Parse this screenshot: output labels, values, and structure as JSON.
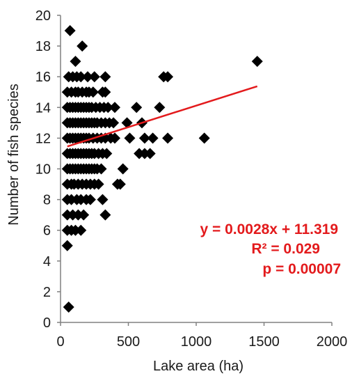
{
  "chart_data": {
    "type": "scatter",
    "title": "",
    "xlabel": "Lake area (ha)",
    "ylabel": "Number of fish species",
    "xlim": [
      0,
      2000
    ],
    "ylim": [
      0,
      20
    ],
    "xticks": [
      0,
      500,
      1000,
      1500,
      2000
    ],
    "yticks": [
      0,
      2,
      4,
      6,
      8,
      10,
      12,
      14,
      16,
      18,
      20
    ],
    "grid": false,
    "marker": "diamond",
    "marker_color": "#000000",
    "series": [
      {
        "points": [
          [
            60,
            1
          ],
          [
            50,
            5
          ],
          [
            50,
            6
          ],
          [
            80,
            6
          ],
          [
            110,
            6
          ],
          [
            150,
            6
          ],
          [
            50,
            7
          ],
          [
            90,
            7
          ],
          [
            130,
            7
          ],
          [
            170,
            7
          ],
          [
            330,
            7
          ],
          [
            50,
            8
          ],
          [
            80,
            8
          ],
          [
            120,
            8
          ],
          [
            150,
            8
          ],
          [
            190,
            8
          ],
          [
            220,
            8
          ],
          [
            310,
            8
          ],
          [
            50,
            9
          ],
          [
            80,
            9
          ],
          [
            100,
            9
          ],
          [
            130,
            9
          ],
          [
            160,
            9
          ],
          [
            190,
            9
          ],
          [
            220,
            9
          ],
          [
            250,
            9
          ],
          [
            280,
            9
          ],
          [
            420,
            9
          ],
          [
            440,
            9
          ],
          [
            50,
            10
          ],
          [
            70,
            10
          ],
          [
            90,
            10
          ],
          [
            110,
            10
          ],
          [
            130,
            10
          ],
          [
            150,
            10
          ],
          [
            170,
            10
          ],
          [
            190,
            10
          ],
          [
            210,
            10
          ],
          [
            230,
            10
          ],
          [
            250,
            10
          ],
          [
            270,
            10
          ],
          [
            300,
            10
          ],
          [
            460,
            10
          ],
          [
            50,
            11
          ],
          [
            70,
            11
          ],
          [
            90,
            11
          ],
          [
            110,
            11
          ],
          [
            130,
            11
          ],
          [
            150,
            11
          ],
          [
            170,
            11
          ],
          [
            190,
            11
          ],
          [
            210,
            11
          ],
          [
            230,
            11
          ],
          [
            250,
            11
          ],
          [
            280,
            11
          ],
          [
            310,
            11
          ],
          [
            340,
            11
          ],
          [
            580,
            11
          ],
          [
            620,
            11
          ],
          [
            660,
            11
          ],
          [
            50,
            12
          ],
          [
            70,
            12
          ],
          [
            90,
            12
          ],
          [
            110,
            12
          ],
          [
            130,
            12
          ],
          [
            150,
            12
          ],
          [
            170,
            12
          ],
          [
            190,
            12
          ],
          [
            210,
            12
          ],
          [
            240,
            12
          ],
          [
            270,
            12
          ],
          [
            300,
            12
          ],
          [
            330,
            12
          ],
          [
            370,
            12
          ],
          [
            400,
            12
          ],
          [
            510,
            12
          ],
          [
            620,
            12
          ],
          [
            680,
            12
          ],
          [
            790,
            12
          ],
          [
            1060,
            12
          ],
          [
            50,
            13
          ],
          [
            70,
            13
          ],
          [
            90,
            13
          ],
          [
            110,
            13
          ],
          [
            130,
            13
          ],
          [
            150,
            13
          ],
          [
            170,
            13
          ],
          [
            190,
            13
          ],
          [
            210,
            13
          ],
          [
            230,
            13
          ],
          [
            250,
            13
          ],
          [
            270,
            13
          ],
          [
            300,
            13
          ],
          [
            330,
            13
          ],
          [
            360,
            13
          ],
          [
            390,
            13
          ],
          [
            490,
            13
          ],
          [
            600,
            13
          ],
          [
            50,
            14
          ],
          [
            70,
            14
          ],
          [
            90,
            14
          ],
          [
            110,
            14
          ],
          [
            130,
            14
          ],
          [
            150,
            14
          ],
          [
            170,
            14
          ],
          [
            190,
            14
          ],
          [
            210,
            14
          ],
          [
            230,
            14
          ],
          [
            260,
            14
          ],
          [
            290,
            14
          ],
          [
            320,
            14
          ],
          [
            350,
            14
          ],
          [
            400,
            14
          ],
          [
            560,
            14
          ],
          [
            730,
            14
          ],
          [
            50,
            15
          ],
          [
            80,
            15
          ],
          [
            110,
            15
          ],
          [
            130,
            15
          ],
          [
            160,
            15
          ],
          [
            190,
            15
          ],
          [
            210,
            15
          ],
          [
            240,
            15
          ],
          [
            310,
            15
          ],
          [
            330,
            15
          ],
          [
            60,
            16
          ],
          [
            90,
            16
          ],
          [
            120,
            16
          ],
          [
            150,
            16
          ],
          [
            200,
            16
          ],
          [
            250,
            16
          ],
          [
            330,
            16
          ],
          [
            760,
            16
          ],
          [
            790,
            16
          ],
          [
            110,
            17
          ],
          [
            1450,
            17
          ],
          [
            160,
            18
          ],
          [
            70,
            19
          ]
        ]
      }
    ],
    "trendline": {
      "slope": 0.0028,
      "intercept": 11.319,
      "x_range": [
        50,
        1450
      ],
      "color": "#e31a1c"
    },
    "annotations": {
      "equation": "y = 0.0028x + 11.319",
      "r_squared": "R² = 0.029",
      "p_value": "p = 0.00007",
      "color": "#e31a1c"
    }
  }
}
